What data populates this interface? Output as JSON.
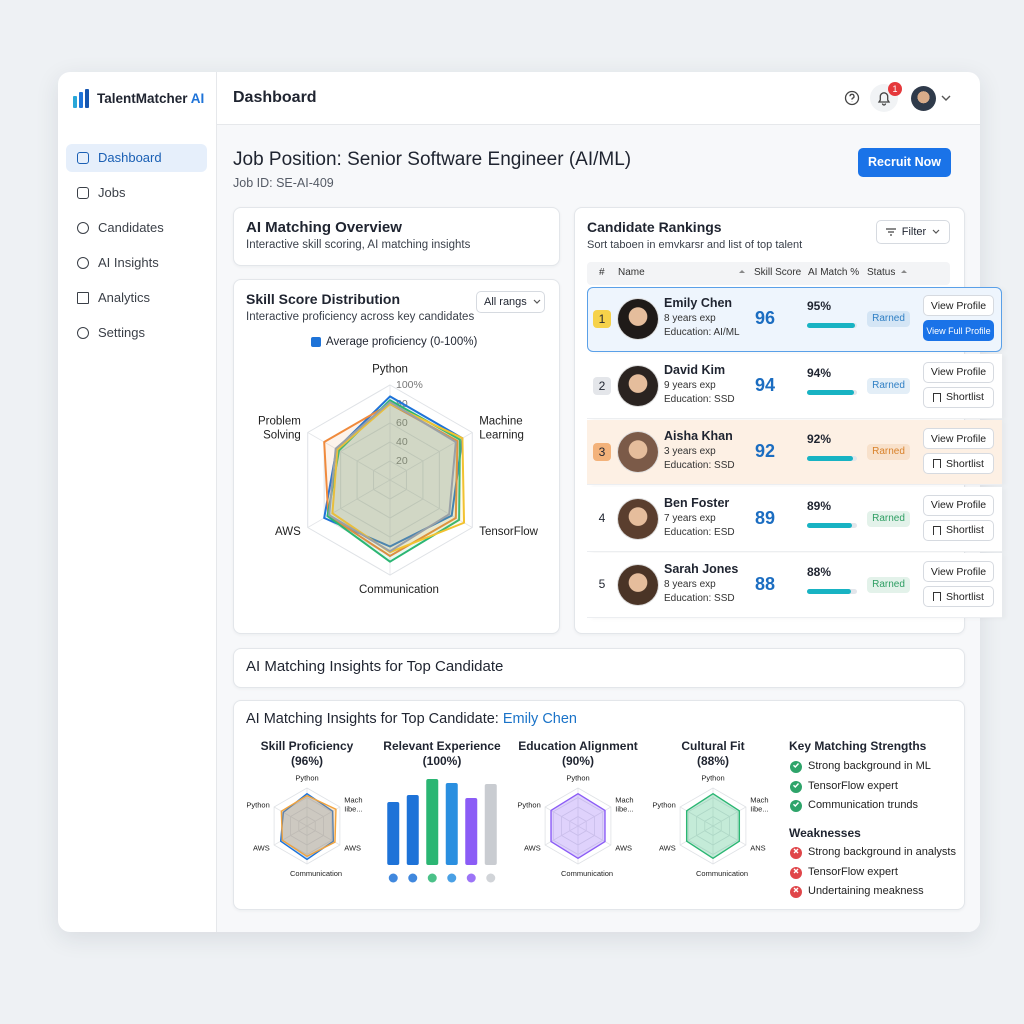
{
  "brand": {
    "name": "TalentMatcher",
    "accent": "AI"
  },
  "nav": [
    {
      "label": "Dashboard",
      "active": true
    },
    {
      "label": "Jobs"
    },
    {
      "label": "Candidates"
    },
    {
      "label": "AI Insights"
    },
    {
      "label": "Analytics"
    },
    {
      "label": "Settings"
    }
  ],
  "header": {
    "title": "Dashboard",
    "notification_count": 1
  },
  "job": {
    "title": "Job Position: Senior Software Engineer (AI/ML)",
    "id": "Job ID: SE-AI-409",
    "action": "Recruit Now"
  },
  "overview": {
    "title": "AI Matching Overview",
    "subtitle": "Interactive skill scoring, AI matching insights"
  },
  "rankings": {
    "title": "Candidate Rankings",
    "subtitle": "Sort taboen in emvkarsr and list of top talent",
    "filter": "Filter",
    "columns": [
      "#",
      "Name",
      "Skill Score",
      "AI Match %",
      "Status"
    ],
    "rows": [
      {
        "rank": 1,
        "name": "Emily Chen",
        "experience": "8 years exp",
        "education": "Education: AI/ML",
        "skill_score": 96,
        "match": 95,
        "match_label": "95%",
        "status": "Rarned",
        "status_color": "#2f7fc4",
        "badge_color": "#f6d24a",
        "highlight": true,
        "actions": [
          "View Profile",
          "View Full Profile"
        ]
      },
      {
        "rank": 2,
        "name": "David Kim",
        "experience": "9 years exp",
        "education": "Education: SSD",
        "skill_score": 94,
        "match": 94,
        "match_label": "94%",
        "status": "Rarned",
        "status_color": "#2f7fc4",
        "badge_color": "#e4e6ea",
        "actions": [
          "View Profile",
          "Shortlist"
        ]
      },
      {
        "rank": 3,
        "name": "Aisha Khan",
        "experience": "3 years exp",
        "education": "Education: SSD",
        "skill_score": 92,
        "match": 92,
        "match_label": "92%",
        "status": "Rarned",
        "status_color": "#d9822b",
        "badge_color": "#f3b27a",
        "row_color": "#fdf0e4",
        "actions": [
          "View Profile",
          "Shortlist"
        ]
      },
      {
        "rank": 4,
        "name": "Ben Foster",
        "experience": "7 years exp",
        "education": "Education: ESD",
        "skill_score": 89,
        "match": 89,
        "match_label": "89%",
        "status": "Rarned",
        "status_color": "#2e9e63",
        "actions": [
          "View Profile",
          "Shortlist"
        ]
      },
      {
        "rank": 5,
        "name": "Sarah Jones",
        "experience": "8 years exp",
        "education": "Education: SSD",
        "skill_score": 88,
        "match": 88,
        "match_label": "88%",
        "status": "Rarned",
        "status_color": "#2e9e63",
        "actions": [
          "View Profile",
          "Shortlist"
        ]
      }
    ]
  },
  "banner": {
    "title": "AI Matching Insights for Top Candidate"
  },
  "insights": {
    "title": "AI Matching Insights for Top Candidate:",
    "candidate": "Emily Chen",
    "strengths": {
      "title": "Key Matching Strengths",
      "items": [
        "Strong background in ML",
        "TensorFlow expert",
        "Communication trunds"
      ]
    },
    "weaknesses": {
      "title": "Weaknesses",
      "items": [
        "Strong background in analysts",
        "TensorFlow expert",
        "Undertaining meakness"
      ]
    }
  },
  "chart_data": [
    {
      "type": "radar",
      "title": "Skill Score Distribution",
      "subtitle": "Interactive proficiency across key candidates",
      "filter": "All rangs",
      "categories": [
        "Python",
        "Machine Learning",
        "TensorFlow",
        "Communication",
        "AWS",
        "Problem Solving"
      ],
      "rlim": [
        0,
        100
      ],
      "rticks": [
        20,
        40,
        60,
        80,
        {
          "value": 100,
          "label": "100%"
        }
      ],
      "series": [
        {
          "name": "Average proficiency (0-100%)",
          "color": "#1e73d8",
          "values": [
            88,
            88,
            75,
            70,
            80,
            65
          ]
        },
        {
          "color": "#f08a3c",
          "values": [
            80,
            82,
            80,
            80,
            75,
            80
          ]
        },
        {
          "color": "#2bb673",
          "values": [
            84,
            85,
            84,
            86,
            76,
            62
          ]
        },
        {
          "color": "#f2c230",
          "values": [
            80,
            88,
            90,
            76,
            70,
            64
          ]
        },
        {
          "color": "#9aa0a6",
          "values": [
            82,
            80,
            72,
            75,
            74,
            66
          ]
        }
      ]
    },
    {
      "type": "radar",
      "title": "Skill Proficiency (96%)",
      "categories": [
        "Python",
        "Mach Iibe...",
        "AWS",
        "Communication",
        "AWS",
        "Python"
      ],
      "rlim": [
        0,
        100
      ],
      "series": [
        {
          "color": "#1e73d8",
          "values": [
            85,
            78,
            80,
            88,
            80,
            72
          ]
        },
        {
          "color": "#f2a33c",
          "values": [
            80,
            88,
            85,
            80,
            75,
            78
          ]
        }
      ]
    },
    {
      "type": "bar",
      "title": "Relevant Experience (100%)",
      "ylim": [
        0,
        100
      ],
      "values": [
        63,
        70,
        86,
        82,
        67,
        81
      ],
      "colors": [
        "#1e73d8",
        "#1e73d8",
        "#2bb673",
        "#2a8fe0",
        "#8b5cf6",
        "#c9ccd1"
      ]
    },
    {
      "type": "radar",
      "title": "Education Alignment (90%)",
      "categories": [
        "Python",
        "Mach Iibe...",
        "AWS",
        "Communication",
        "AWS",
        "Python"
      ],
      "rlim": [
        0,
        100
      ],
      "series": [
        {
          "color": "#8b5cf6",
          "values": [
            85,
            82,
            82,
            85,
            82,
            82
          ]
        }
      ]
    },
    {
      "type": "radar",
      "title": "Cultural Fit (88%)",
      "categories": [
        "Python",
        "Mach Iibe...",
        "ANS",
        "Communication",
        "AWS",
        "Python"
      ],
      "rlim": [
        0,
        100
      ],
      "series": [
        {
          "color": "#2bb673",
          "values": [
            85,
            80,
            80,
            85,
            80,
            80
          ]
        }
      ]
    }
  ]
}
